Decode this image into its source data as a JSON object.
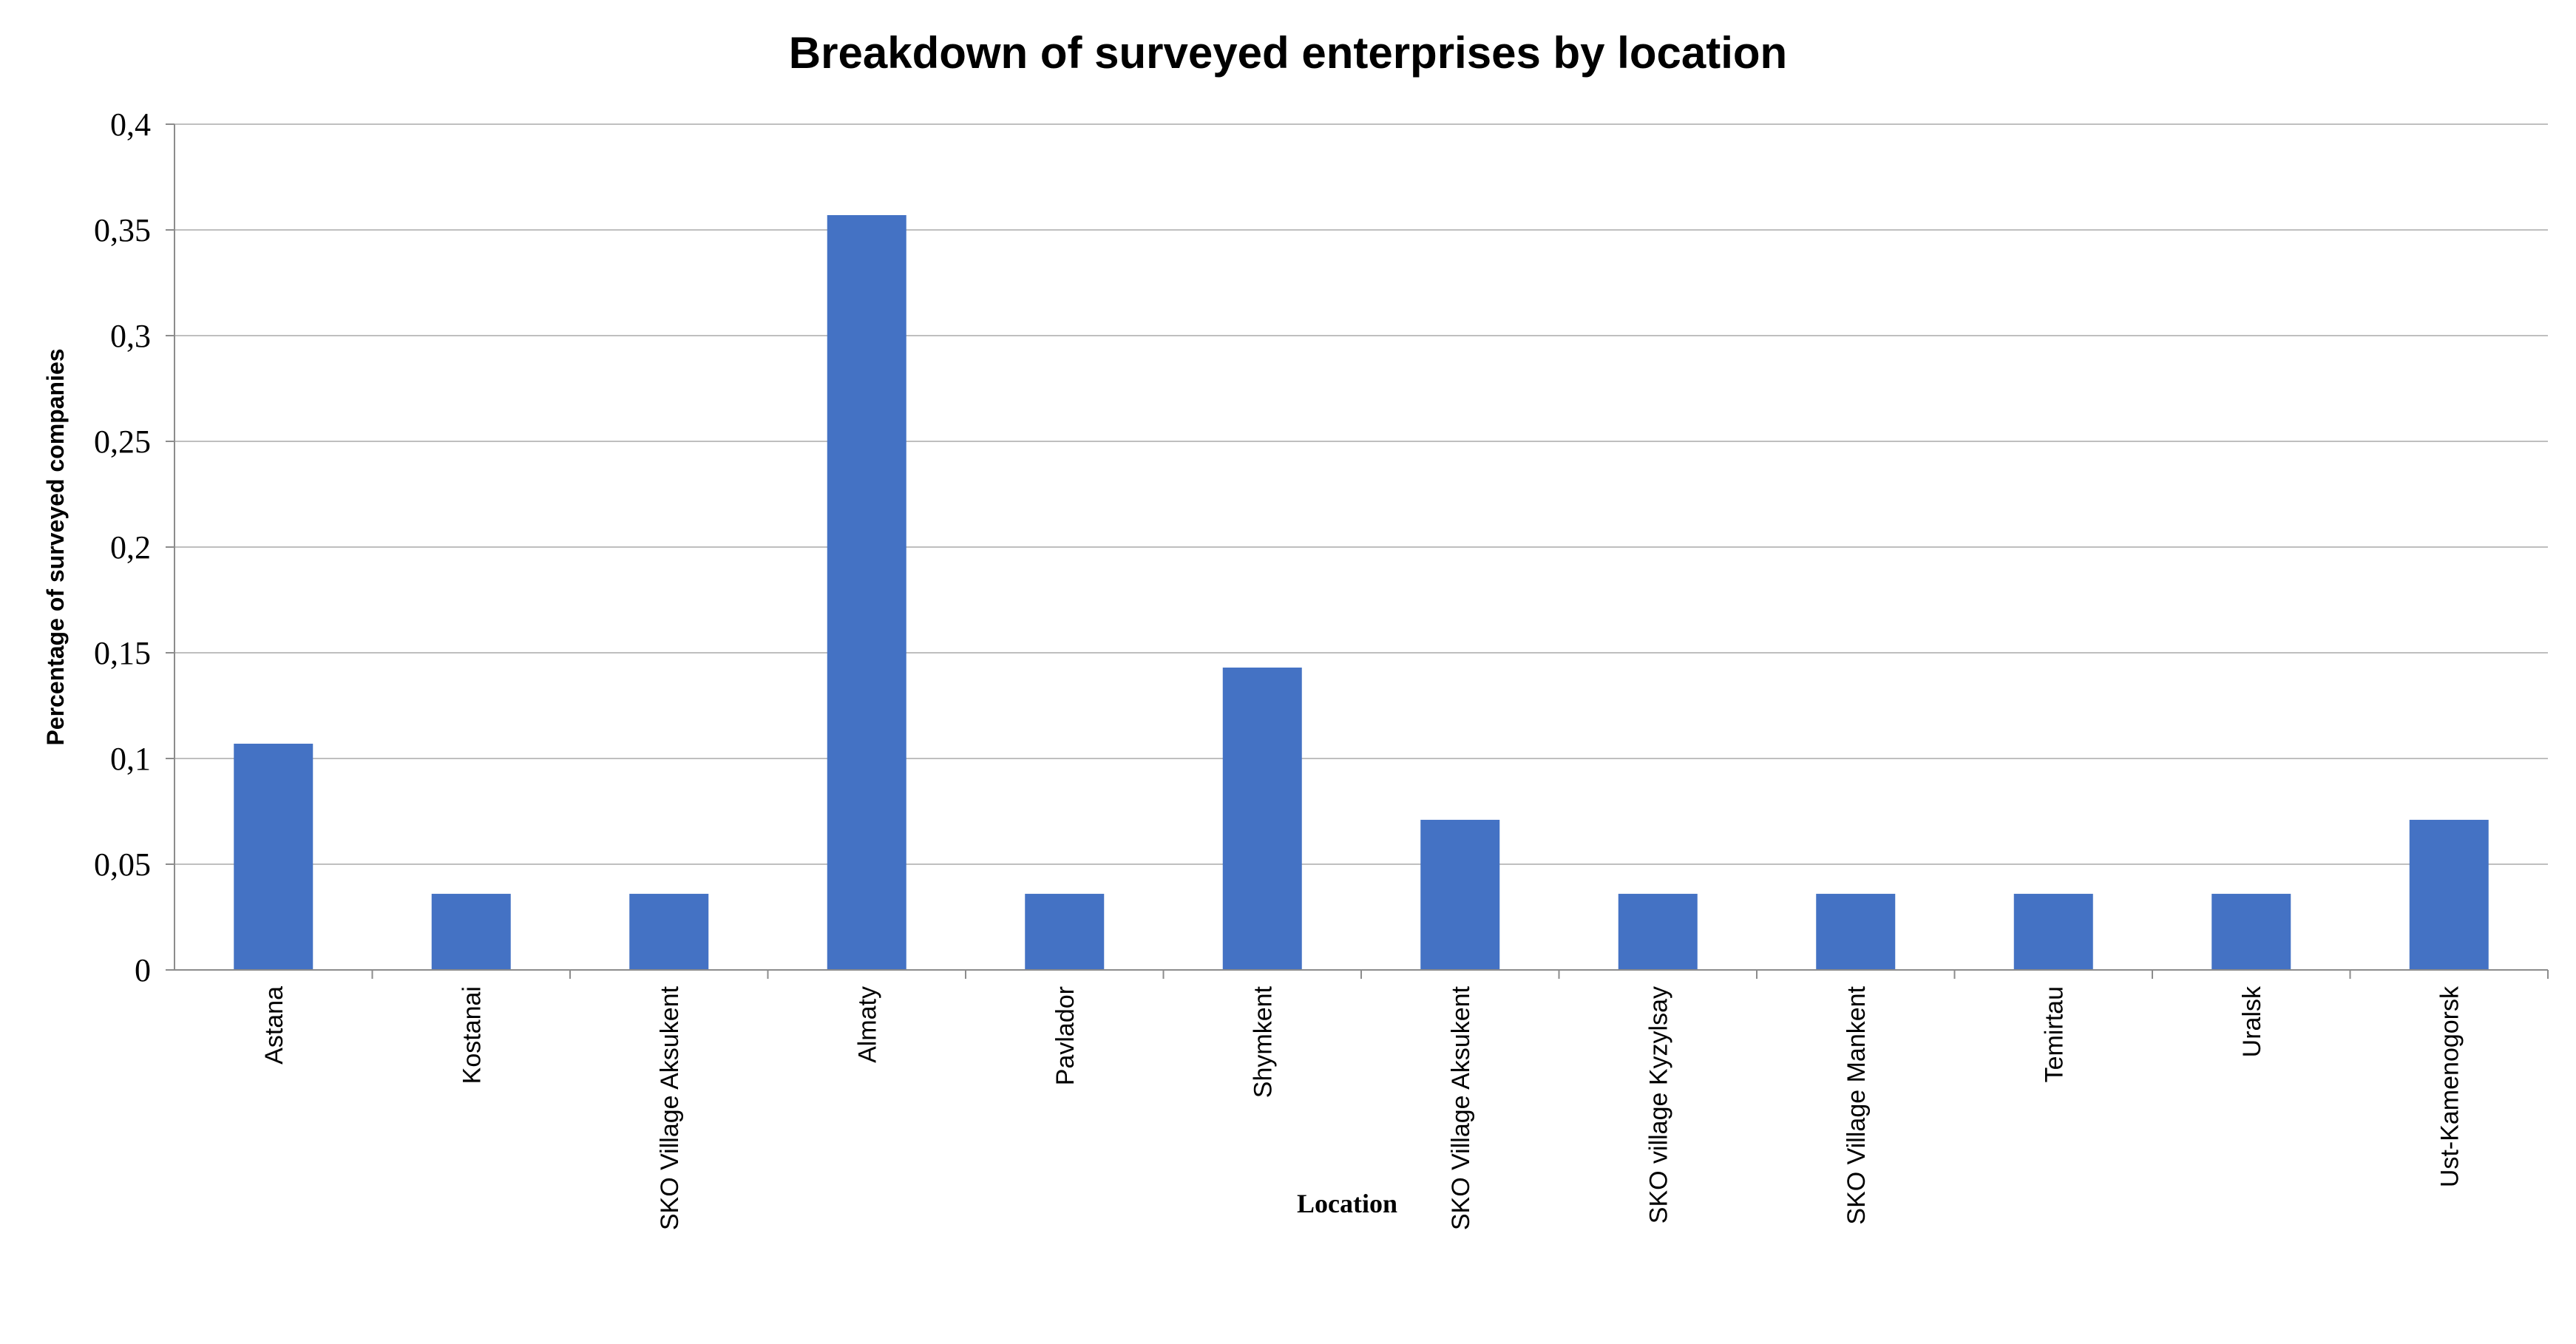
{
  "chart_data": {
    "type": "bar",
    "title": "Breakdown of surveyed enterprises by location",
    "xlabel": "Location",
    "ylabel": "Percentage of surveyed companies",
    "ylim": [
      0,
      0.4
    ],
    "yticks": [
      "0",
      "0,05",
      "0,1",
      "0,15",
      "0,2",
      "0,25",
      "0,3",
      "0,35",
      "0,4"
    ],
    "ytick_values": [
      0,
      0.05,
      0.1,
      0.15,
      0.2,
      0.25,
      0.3,
      0.35,
      0.4
    ],
    "categories": [
      "Astana",
      "Kostanai",
      "SKO Village Aksukent",
      "Almaty",
      "Pavlador",
      "Shymkent",
      "SKO Village Aksukent",
      "SKO village Kyzylsay",
      "SKO Village Mankent",
      "Temirtau",
      "Uralsk",
      "Ust-Kamenogorsk"
    ],
    "values": [
      0.107,
      0.036,
      0.036,
      0.357,
      0.036,
      0.143,
      0.071,
      0.036,
      0.036,
      0.036,
      0.036,
      0.071
    ],
    "grid": true,
    "legend": "none",
    "bar_color": "#4472C4",
    "grid_color": "#BFBFBF",
    "axis_color": "#8C8C8C"
  }
}
